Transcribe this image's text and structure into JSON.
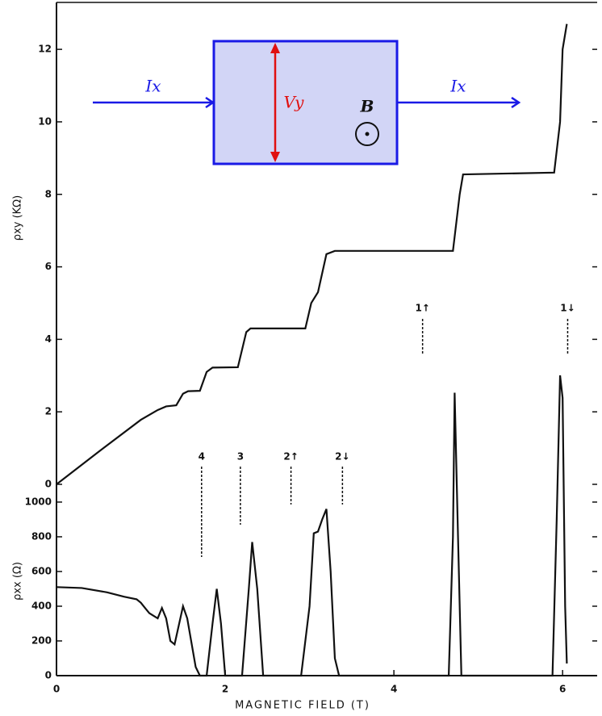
{
  "chart_data": [
    {
      "type": "line",
      "ylabel": "ρxy (KΩ)",
      "color": "#111111",
      "x": [
        0,
        0.5,
        1.0,
        1.2,
        1.3,
        1.42,
        1.5,
        1.56,
        1.7,
        1.78,
        1.85,
        2.15,
        2.25,
        2.3,
        2.95,
        3.02,
        3.1,
        3.2,
        3.3,
        4.7,
        4.78,
        4.82,
        5.9,
        5.97,
        6.0,
        6.05
      ],
      "values": [
        0,
        0.9,
        1.78,
        2.05,
        2.15,
        2.18,
        2.5,
        2.57,
        2.58,
        3.1,
        3.22,
        3.23,
        4.2,
        4.3,
        4.3,
        5.0,
        5.3,
        6.35,
        6.44,
        6.44,
        8.0,
        8.55,
        8.6,
        10.0,
        12.0,
        12.7
      ],
      "xlim": [
        0,
        6.4
      ],
      "ylim": [
        0,
        13.25
      ],
      "yticks": [
        0,
        2,
        4,
        6,
        8,
        10,
        12
      ],
      "inset": {
        "labels": [
          "Ix",
          "Vy",
          "B",
          "Ix"
        ]
      }
    },
    {
      "type": "line",
      "ylabel": "ρxx (Ω)",
      "xlabel": "MAGNETIC FIELD (T)",
      "color": "#111111",
      "x": [
        0,
        0.3,
        0.6,
        0.8,
        0.95,
        1.0,
        1.05,
        1.1,
        1.2,
        1.25,
        1.3,
        1.35,
        1.4,
        1.5,
        1.55,
        1.65,
        1.7,
        1.78,
        1.85,
        1.9,
        1.95,
        2.0,
        2.2,
        2.28,
        2.32,
        2.38,
        2.45,
        2.9,
        3.0,
        3.05,
        3.1,
        3.15,
        3.2,
        3.25,
        3.3,
        3.35,
        4.65,
        4.7,
        4.72,
        4.76,
        4.8,
        5.88,
        5.93,
        5.97,
        6.0,
        6.03,
        6.05
      ],
      "values": [
        510,
        505,
        480,
        455,
        440,
        420,
        390,
        360,
        330,
        390,
        330,
        200,
        180,
        400,
        330,
        50,
        0,
        0,
        300,
        500,
        300,
        0,
        0,
        500,
        770,
        500,
        0,
        0,
        400,
        820,
        830,
        900,
        960,
        600,
        100,
        0,
        0,
        800,
        1630,
        800,
        0,
        0,
        900,
        1730,
        1600,
        400,
        70
      ],
      "xlim": [
        0,
        6.4
      ],
      "ylim": [
        0,
        1065
      ],
      "yticks": [
        0,
        200,
        400,
        600,
        800,
        1000
      ],
      "xticks": [
        0,
        2,
        4,
        6
      ],
      "markers": [
        {
          "label": "4",
          "x": 1.72
        },
        {
          "label": "3",
          "x": 2.18
        },
        {
          "label": "2↑",
          "x": 2.78
        },
        {
          "label": "2↓",
          "x": 3.39
        },
        {
          "label": "1↑",
          "x": 4.34
        },
        {
          "label": "1↓",
          "x": 6.06
        }
      ]
    }
  ]
}
